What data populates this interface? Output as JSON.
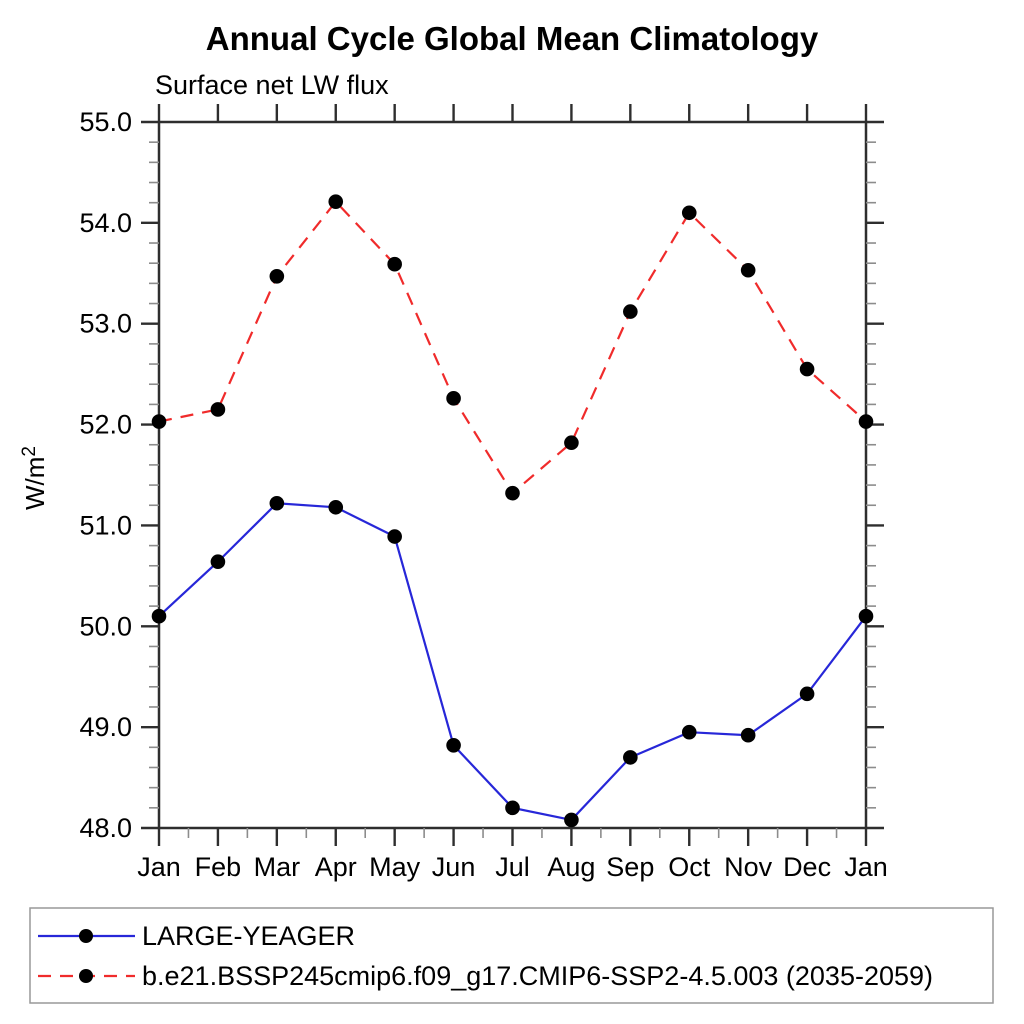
{
  "chart_data": {
    "type": "line",
    "title": "Annual Cycle Global Mean Climatology",
    "subtitle": "Surface net LW flux",
    "ylabel_base": "W/m",
    "ylabel_sup": "2",
    "x_categories": [
      "Jan",
      "Feb",
      "Mar",
      "Apr",
      "May",
      "Jun",
      "Jul",
      "Aug",
      "Sep",
      "Oct",
      "Nov",
      "Dec",
      "Jan"
    ],
    "axes": {
      "ylim": [
        48.0,
        55.0
      ],
      "ytick_step": 1.0,
      "ytick_decimals": 1,
      "y_minor_step": 0.2,
      "x_minor_per_interval": 1,
      "grid": false,
      "axis_color": "#2e2e2e",
      "minor_tick_color": "#8c8c8c"
    },
    "series": [
      {
        "name": "LARGE-YEAGER",
        "color": "#2727d8",
        "line_style": "solid",
        "marker": "filled-circle",
        "marker_color": "#000000",
        "values": [
          50.1,
          50.64,
          51.22,
          51.18,
          50.89,
          48.82,
          48.2,
          48.08,
          48.7,
          48.95,
          48.92,
          49.33,
          50.1
        ]
      },
      {
        "name": "b.e21.BSSP245cmip6.f09_g17.CMIP6-SSP2-4.5.003 (2035-2059)",
        "color": "#f02b2b",
        "line_style": "dashed",
        "marker": "filled-circle",
        "marker_color": "#000000",
        "values": [
          52.03,
          52.15,
          53.47,
          54.21,
          53.59,
          52.26,
          51.32,
          51.82,
          53.12,
          54.1,
          53.53,
          52.55,
          52.03
        ]
      }
    ],
    "legend_position": "bottom",
    "legend_border_color": "#999999"
  }
}
